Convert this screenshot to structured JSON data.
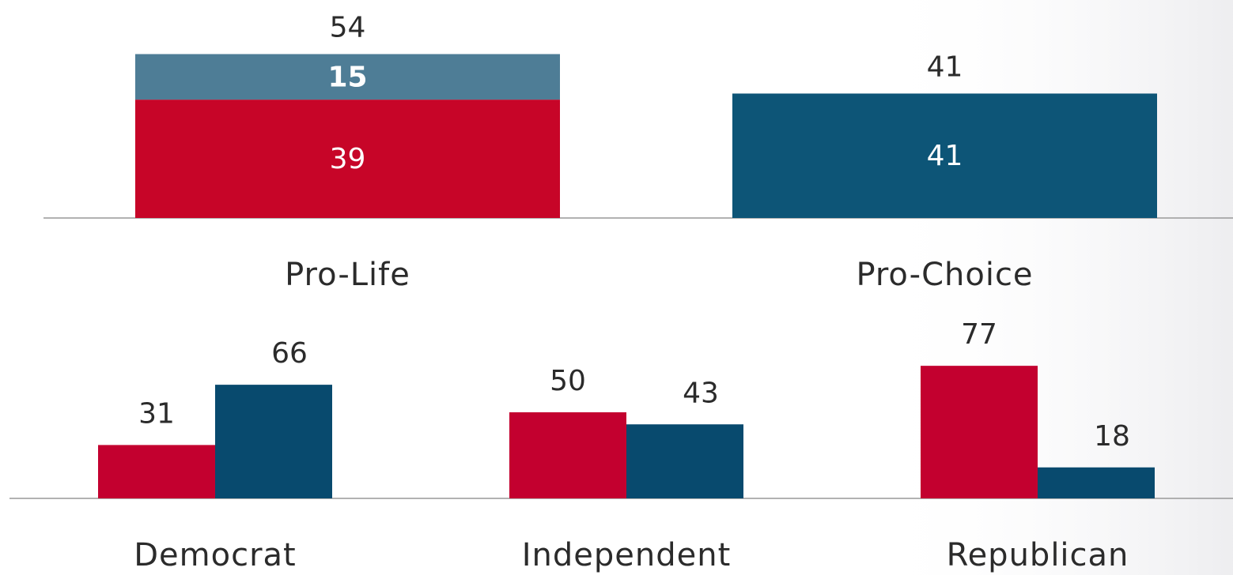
{
  "chart_data": [
    {
      "type": "stacked-bar",
      "categories": [
        "Pro-Life",
        "Pro-Choice"
      ],
      "series": [
        {
          "color": "#c70528",
          "values": [
            39,
            null
          ]
        },
        {
          "color": "#4e7d96",
          "values": [
            15,
            null
          ]
        },
        {
          "color": "#0d5577",
          "values": [
            null,
            41
          ]
        }
      ],
      "totals": [
        54,
        41
      ],
      "ylim": [
        0,
        70
      ]
    },
    {
      "type": "grouped-bar",
      "categories": [
        "Democrat",
        "Independent",
        "Republican"
      ],
      "series": [
        {
          "color": "#c3002f",
          "values": [
            31,
            50,
            77
          ]
        },
        {
          "color": "#084a6e",
          "values": [
            66,
            43,
            18
          ]
        }
      ],
      "ylim": [
        0,
        100
      ]
    }
  ]
}
